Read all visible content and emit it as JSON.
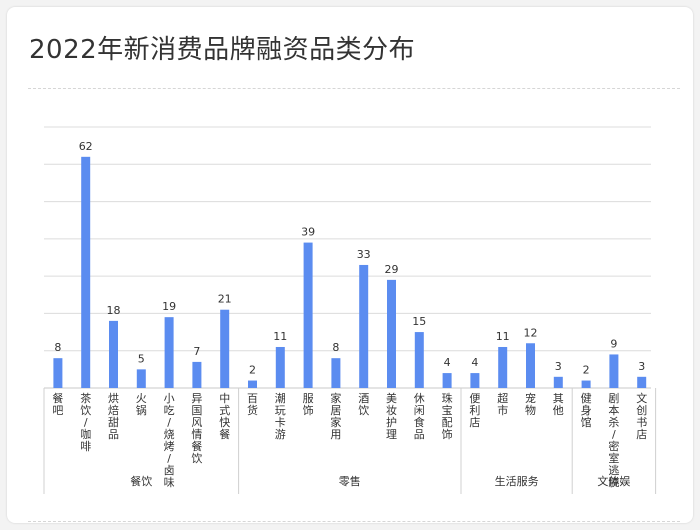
{
  "title": "2022年新消费品牌融资品类分布",
  "chart_data": {
    "type": "bar",
    "color": "#5b8cf0",
    "grid": true,
    "ylim": [
      0,
      70
    ],
    "groups": [
      {
        "name": "餐饮",
        "categories": [
          "餐吧",
          "茶饮/咖啡",
          "烘焙甜品",
          "火锅",
          "小吃/烧烤/卤味",
          "异国风情餐饮",
          "中式快餐"
        ],
        "values": [
          8,
          62,
          18,
          5,
          19,
          7,
          21
        ]
      },
      {
        "name": "零售",
        "categories": [
          "百货",
          "潮玩卡游",
          "服饰",
          "家居家用",
          "酒饮",
          "美妆护理",
          "休闲食品",
          "珠宝配饰"
        ],
        "values": [
          2,
          11,
          39,
          8,
          33,
          29,
          15,
          4
        ]
      },
      {
        "name": "生活服务",
        "categories": [
          "便利店",
          "超市",
          "宠物",
          "其他"
        ],
        "values": [
          4,
          11,
          12,
          3
        ]
      },
      {
        "name": "文体娱",
        "categories": [
          "健身馆",
          "剧本杀/密室逃脱",
          "文创书店"
        ],
        "values": [
          2,
          9,
          3
        ]
      }
    ]
  }
}
